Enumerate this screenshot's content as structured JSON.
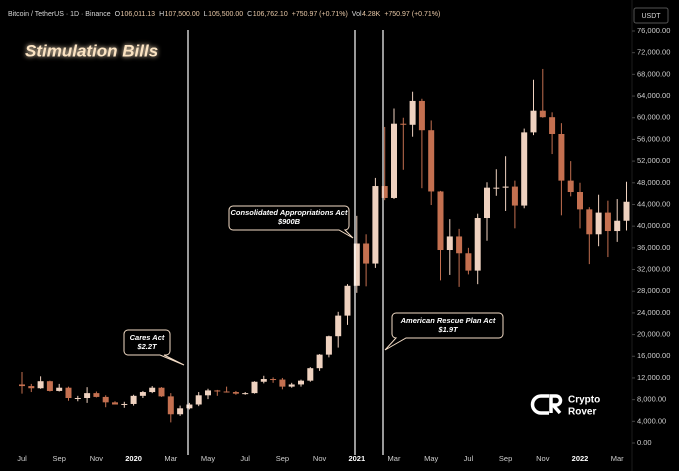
{
  "header": {
    "symbol": "Bitcoin / TetherUS · 1D · Binance",
    "ohlc": [
      {
        "key": "O",
        "value": "106,011.13"
      },
      {
        "key": "H",
        "value": "107,500.00"
      },
      {
        "key": "L",
        "value": "105,500.00"
      },
      {
        "key": "C",
        "value": "106,762.10"
      }
    ],
    "change": "+750.97 (+0.71%)",
    "volume_key": "Vol",
    "volume": "4.28K",
    "volume_change": "+750.97 (+0.71%)",
    "currency": "USDT"
  },
  "brand": [
    "Crypto",
    "Rover"
  ],
  "chart_data": {
    "type": "candlestick",
    "title": "Stimulation Bills",
    "categories": [
      "Jul",
      null,
      null,
      null,
      "Sep",
      null,
      null,
      null,
      "Nov",
      null,
      null,
      null,
      "2020",
      null,
      null,
      null,
      "Mar",
      null,
      null,
      null,
      "May",
      null,
      null,
      null,
      "Jul",
      null,
      null,
      null,
      "Sep",
      null,
      null,
      null,
      "Nov",
      null,
      null,
      null,
      "2021",
      null,
      null,
      null,
      "Mar",
      null,
      null,
      null,
      "May",
      null,
      null,
      null,
      "Jul",
      null,
      null,
      null,
      "Sep",
      null,
      null,
      null,
      "Nov",
      null,
      null,
      null,
      "2022",
      null,
      null,
      null,
      "Mar",
      null
    ],
    "open": [
      10800,
      10500,
      10100,
      11400,
      9600,
      10200,
      8300,
      8300,
      9200,
      8500,
      7500,
      7100,
      7200,
      8700,
      9400,
      10200,
      8600,
      5300,
      6400,
      7100,
      8800,
      9700,
      9500,
      9400,
      9100,
      9200,
      11300,
      11800,
      11700,
      10400,
      10800,
      11500,
      13800,
      16300,
      19700,
      23500,
      29000,
      36800,
      33100,
      47400,
      45200,
      58900,
      58700,
      63100,
      57700,
      46400,
      35600,
      38100,
      35000,
      31800,
      41500,
      47100,
      47100,
      47300,
      43800,
      57300,
      61300,
      60100,
      57000,
      48400,
      46300,
      43100,
      38500,
      42500,
      39100,
      41000
    ],
    "high": [
      13100,
      10900,
      12300,
      11500,
      10900,
      10400,
      8700,
      10300,
      9500,
      8800,
      7700,
      7600,
      8900,
      9600,
      10500,
      10300,
      9200,
      6900,
      7400,
      9400,
      10000,
      9800,
      10400,
      9600,
      9400,
      11400,
      12400,
      12100,
      12000,
      11100,
      11700,
      14000,
      16400,
      19800,
      24200,
      29300,
      41900,
      38500,
      48900,
      58300,
      61700,
      60000,
      64800,
      63500,
      59500,
      46500,
      41300,
      39500,
      36000,
      42300,
      48100,
      50500,
      52900,
      48400,
      58000,
      67000,
      69000,
      61000,
      59000,
      52000,
      48000,
      43500,
      45800,
      44700,
      45000,
      48200
    ],
    "low": [
      9100,
      9400,
      10000,
      9500,
      9500,
      7800,
      7700,
      7400,
      8400,
      6600,
      7100,
      6500,
      6900,
      8300,
      9200,
      8500,
      3800,
      5000,
      6200,
      6800,
      8100,
      8700,
      9300,
      8900,
      8900,
      9100,
      11000,
      11100,
      9900,
      10200,
      10400,
      11300,
      13300,
      15800,
      17600,
      21800,
      27700,
      28900,
      32300,
      44800,
      45000,
      50400,
      56500,
      47000,
      43900,
      30000,
      31000,
      28800,
      31100,
      29300,
      37300,
      45600,
      42800,
      39600,
      43300,
      56800,
      60000,
      53300,
      42000,
      45500,
      39600,
      33000,
      36300,
      34300,
      37100,
      39200
    ],
    "close": [
      10500,
      10100,
      11400,
      9600,
      10200,
      8300,
      8300,
      9200,
      8500,
      7500,
      7100,
      7200,
      8700,
      9400,
      10200,
      8600,
      5300,
      6400,
      7100,
      8800,
      9700,
      9500,
      9400,
      9100,
      9200,
      11300,
      11800,
      11700,
      10400,
      10800,
      11500,
      13800,
      16300,
      19700,
      23500,
      29000,
      36800,
      33100,
      47400,
      45200,
      58900,
      58700,
      63100,
      57700,
      46400,
      35600,
      38100,
      35000,
      31800,
      41500,
      47100,
      47100,
      47300,
      43800,
      57300,
      61300,
      60100,
      57000,
      48400,
      46300,
      43100,
      38500,
      42500,
      39100,
      41000,
      44500
    ],
    "up_color": "#efd2c0",
    "down_color": "#c47050",
    "ylim": [
      0,
      76000
    ],
    "yticks": [
      {
        "value": 0,
        "label": "0.00"
      },
      {
        "value": 4000,
        "label": "4,000.00"
      },
      {
        "value": 8000,
        "label": "8,000.00"
      },
      {
        "value": 12000,
        "label": "12,000.00"
      },
      {
        "value": 16000,
        "label": "16,000.00"
      },
      {
        "value": 20000,
        "label": "20,000.00"
      },
      {
        "value": 24000,
        "label": "24,000.00"
      },
      {
        "value": 28000,
        "label": "28,000.00"
      },
      {
        "value": 32000,
        "label": "32,000.00"
      },
      {
        "value": 36000,
        "label": "36,000.00"
      },
      {
        "value": 40000,
        "label": "40,000.00"
      },
      {
        "value": 44000,
        "label": "44,000.00"
      },
      {
        "value": 48000,
        "label": "48,000.00"
      },
      {
        "value": 52000,
        "label": "52,000.00"
      },
      {
        "value": 56000,
        "label": "56,000.00"
      },
      {
        "value": 60000,
        "label": "60,000.00"
      },
      {
        "value": 64000,
        "label": "64,000.00"
      },
      {
        "value": 68000,
        "label": "68,000.00"
      },
      {
        "value": 72000,
        "label": "72,000.00"
      },
      {
        "value": 76000,
        "label": "76,000.00"
      }
    ],
    "grid": false,
    "annotations": [
      {
        "title": "Cares Act",
        "amount": "$2.2T"
      },
      {
        "title": "Consolidated Appropriations Act",
        "amount": "$900B"
      },
      {
        "title": "American Rescue Plan Act",
        "amount": "$1.9T"
      }
    ]
  }
}
